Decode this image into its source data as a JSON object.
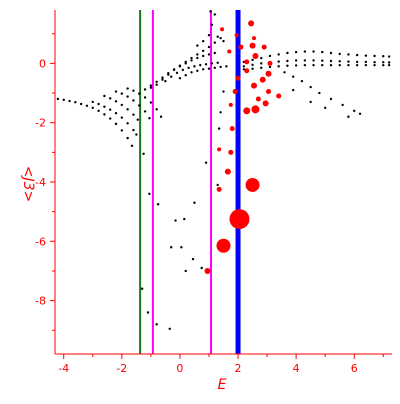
{
  "chart_data": {
    "type": "scatter",
    "title": "",
    "xlabel": "E",
    "ylabel": "<J3>",
    "xlim": [
      -4.3,
      7.3
    ],
    "ylim": [
      -9.8,
      1.8
    ],
    "xticks": [
      -4,
      -2,
      0,
      2,
      4,
      6
    ],
    "yticks": [
      0,
      -2,
      -4,
      -6,
      -8
    ],
    "xtick_labels": [
      "-4",
      "-2",
      "0",
      "2",
      "4",
      "6"
    ],
    "ytick_labels": [
      "0",
      "-2",
      "-4",
      "-6",
      "-8"
    ],
    "grid": false,
    "legend": "none",
    "vertical_lines": [
      {
        "x": -1.37,
        "color": "#1a7a1a",
        "style": "thin"
      },
      {
        "x": -0.93,
        "color": "#ff00ff",
        "style": "thin"
      },
      {
        "x": 1.07,
        "color": "#ff00ff",
        "style": "thin"
      },
      {
        "x": 2.0,
        "color": "#0000ff",
        "style": "thick"
      }
    ],
    "series": [
      {
        "color": "#000000",
        "marker": "dot",
        "points": [
          [
            -4.2,
            -1.2
          ],
          [
            -4.0,
            -1.23
          ],
          [
            -3.8,
            -1.27
          ],
          [
            -3.6,
            -1.31
          ],
          [
            -3.4,
            -1.37
          ],
          [
            -3.2,
            -1.43
          ],
          [
            -3.0,
            -1.5
          ],
          [
            -2.8,
            -1.6
          ],
          [
            -2.6,
            -1.72
          ],
          [
            -2.4,
            -1.86
          ],
          [
            -2.2,
            -2.04
          ],
          [
            -2.0,
            -2.26
          ],
          [
            -1.8,
            -2.52
          ],
          [
            -1.65,
            -2.78
          ],
          [
            -3.0,
            -1.3
          ],
          [
            -2.8,
            -1.37
          ],
          [
            -2.6,
            -1.46
          ],
          [
            -2.4,
            -1.56
          ],
          [
            -2.2,
            -1.68
          ],
          [
            -2.0,
            -1.83
          ],
          [
            -1.8,
            -2.02
          ],
          [
            -1.6,
            -2.25
          ],
          [
            -1.5,
            -2.4
          ],
          [
            -2.6,
            -1.1
          ],
          [
            -2.4,
            -1.18
          ],
          [
            -2.2,
            -1.28
          ],
          [
            -2.0,
            -1.4
          ],
          [
            -1.8,
            -1.55
          ],
          [
            -1.6,
            -1.73
          ],
          [
            -1.45,
            -1.9
          ],
          [
            -2.2,
            -0.95
          ],
          [
            -2.0,
            -1.02
          ],
          [
            -1.8,
            -1.12
          ],
          [
            -1.6,
            -1.25
          ],
          [
            -1.4,
            -1.42
          ],
          [
            -1.2,
            -1.62
          ],
          [
            -1.05,
            -1.85
          ],
          [
            -1.8,
            -0.85
          ],
          [
            -1.6,
            -0.92
          ],
          [
            -1.4,
            -1.02
          ],
          [
            -1.2,
            -1.15
          ],
          [
            -1.0,
            -1.32
          ],
          [
            -0.8,
            -1.55
          ],
          [
            -0.65,
            -1.8
          ],
          [
            -1.2,
            -0.88
          ],
          [
            -1.0,
            -0.82
          ],
          [
            -0.8,
            -0.72
          ],
          [
            -0.6,
            -0.55
          ],
          [
            -0.4,
            -0.38
          ],
          [
            -0.2,
            -0.22
          ],
          [
            0.0,
            -0.08
          ],
          [
            0.2,
            0.05
          ],
          [
            0.4,
            0.18
          ],
          [
            0.6,
            0.3
          ],
          [
            0.8,
            0.42
          ],
          [
            1.0,
            0.55
          ],
          [
            1.2,
            0.7
          ],
          [
            1.4,
            0.85
          ],
          [
            -1.0,
            -0.75
          ],
          [
            -0.8,
            -0.62
          ],
          [
            -0.6,
            -0.48
          ],
          [
            -0.4,
            -0.33
          ],
          [
            -0.2,
            -0.2
          ],
          [
            0.0,
            -0.1
          ],
          [
            0.2,
            0.0
          ],
          [
            0.4,
            0.1
          ],
          [
            0.6,
            0.18
          ],
          [
            0.8,
            0.25
          ],
          [
            1.0,
            0.3
          ],
          [
            1.2,
            0.35
          ],
          [
            -0.5,
            -0.6
          ],
          [
            -0.3,
            -0.45
          ],
          [
            -0.1,
            -0.32
          ],
          [
            0.1,
            -0.22
          ],
          [
            0.3,
            -0.15
          ],
          [
            0.5,
            -0.1
          ],
          [
            0.7,
            -0.06
          ],
          [
            0.9,
            -0.03
          ],
          [
            1.1,
            0.0
          ],
          [
            1.3,
            0.02
          ],
          [
            0.0,
            -0.5
          ],
          [
            0.2,
            -0.4
          ],
          [
            0.4,
            -0.3
          ],
          [
            0.6,
            -0.25
          ],
          [
            0.8,
            -0.2
          ],
          [
            1.0,
            -0.18
          ],
          [
            1.2,
            -0.15
          ],
          [
            1.4,
            -0.12
          ],
          [
            1.6,
            -0.1
          ],
          [
            0.6,
            0.6
          ],
          [
            0.8,
            0.75
          ],
          [
            1.0,
            0.95
          ],
          [
            1.1,
            1.3
          ],
          [
            1.3,
            0.9
          ],
          [
            1.5,
            0.75
          ],
          [
            1.2,
            1.65
          ],
          [
            1.05,
            1.75
          ],
          [
            2.2,
            0.05
          ],
          [
            2.5,
            0.12
          ],
          [
            2.8,
            0.18
          ],
          [
            3.1,
            0.25
          ],
          [
            3.4,
            0.3
          ],
          [
            3.7,
            0.35
          ],
          [
            4.0,
            0.38
          ],
          [
            4.3,
            0.4
          ],
          [
            4.6,
            0.4
          ],
          [
            4.9,
            0.38
          ],
          [
            5.2,
            0.35
          ],
          [
            5.5,
            0.32
          ],
          [
            5.8,
            0.3
          ],
          [
            6.1,
            0.28
          ],
          [
            6.4,
            0.26
          ],
          [
            6.7,
            0.25
          ],
          [
            7.0,
            0.24
          ],
          [
            7.2,
            0.23
          ],
          [
            2.2,
            -0.1
          ],
          [
            2.5,
            -0.05
          ],
          [
            2.8,
            0.0
          ],
          [
            3.1,
            0.03
          ],
          [
            3.4,
            0.06
          ],
          [
            3.7,
            0.08
          ],
          [
            4.0,
            0.1
          ],
          [
            4.3,
            0.1
          ],
          [
            4.6,
            0.1
          ],
          [
            4.9,
            0.09
          ],
          [
            5.2,
            0.08
          ],
          [
            5.5,
            0.07
          ],
          [
            5.8,
            0.06
          ],
          [
            6.1,
            0.05
          ],
          [
            6.4,
            0.05
          ],
          [
            6.7,
            0.04
          ],
          [
            7.0,
            0.04
          ],
          [
            7.2,
            0.03
          ],
          [
            2.2,
            -0.2
          ],
          [
            2.5,
            -0.18
          ],
          [
            2.8,
            -0.15
          ],
          [
            3.1,
            -0.12
          ],
          [
            3.4,
            -0.1
          ],
          [
            3.7,
            -0.08
          ],
          [
            4.0,
            -0.07
          ],
          [
            4.3,
            -0.06
          ],
          [
            4.6,
            -0.06
          ],
          [
            4.9,
            -0.06
          ],
          [
            5.2,
            -0.06
          ],
          [
            5.5,
            -0.06
          ],
          [
            5.8,
            -0.06
          ],
          [
            6.1,
            -0.06
          ],
          [
            6.4,
            -0.06
          ],
          [
            6.7,
            -0.06
          ],
          [
            7.0,
            -0.06
          ],
          [
            7.2,
            -0.06
          ],
          [
            3.6,
            -0.3
          ],
          [
            3.9,
            -0.45
          ],
          [
            4.2,
            -0.6
          ],
          [
            4.5,
            -0.8
          ],
          [
            4.8,
            -1.0
          ],
          [
            5.2,
            -1.2
          ],
          [
            5.6,
            -1.4
          ],
          [
            6.0,
            -1.6
          ],
          [
            6.2,
            -1.7
          ],
          [
            3.9,
            -0.9
          ],
          [
            4.5,
            -1.3
          ],
          [
            5.0,
            -1.5
          ],
          [
            5.8,
            -1.8
          ],
          [
            -1.25,
            -3.05
          ],
          [
            -1.05,
            -4.4
          ],
          [
            -0.75,
            -4.75
          ],
          [
            -0.15,
            -5.3
          ],
          [
            0.15,
            -5.25
          ],
          [
            -0.3,
            -6.2
          ],
          [
            0.05,
            -6.2
          ],
          [
            0.45,
            -6.6
          ],
          [
            0.2,
            -7.0
          ],
          [
            0.75,
            -6.9
          ],
          [
            -1.3,
            -7.6
          ],
          [
            -1.1,
            -8.4
          ],
          [
            -0.8,
            -8.8
          ],
          [
            -0.35,
            -8.95
          ],
          [
            0.5,
            -4.7
          ],
          [
            1.3,
            -4.1
          ],
          [
            0.9,
            -3.35
          ],
          [
            1.35,
            -2.2
          ],
          [
            1.4,
            -1.65
          ],
          [
            1.5,
            -0.95
          ]
        ]
      },
      {
        "color": "#ff0000",
        "marker": "circle",
        "points": [
          [
            2.05,
            -5.25,
            10
          ],
          [
            1.5,
            -6.15,
            7
          ],
          [
            2.5,
            -4.1,
            7
          ],
          [
            0.95,
            -7.0,
            3
          ],
          [
            1.35,
            -4.25,
            2.5
          ],
          [
            1.65,
            -3.65,
            3
          ],
          [
            1.75,
            -3.0,
            2.5
          ],
          [
            1.35,
            -2.9,
            2
          ],
          [
            1.8,
            -2.2,
            2.5
          ],
          [
            2.3,
            -1.6,
            3.5
          ],
          [
            2.6,
            -1.55,
            4
          ],
          [
            2.95,
            -1.35,
            3
          ],
          [
            2.7,
            -1.2,
            2.5
          ],
          [
            3.05,
            -0.95,
            2.5
          ],
          [
            3.4,
            -1.1,
            2.5
          ],
          [
            2.55,
            -0.75,
            3
          ],
          [
            2.85,
            -0.55,
            3
          ],
          [
            3.05,
            -0.35,
            3
          ],
          [
            2.3,
            -0.25,
            2.5
          ],
          [
            2.0,
            -0.5,
            2.5
          ],
          [
            1.9,
            -0.95,
            2.5
          ],
          [
            2.3,
            0.05,
            2.5
          ],
          [
            2.6,
            0.25,
            3
          ],
          [
            2.9,
            0.55,
            2.5
          ],
          [
            2.5,
            0.6,
            3
          ],
          [
            2.1,
            0.55,
            2.5
          ],
          [
            1.7,
            0.4,
            2
          ],
          [
            1.95,
            0.95,
            2
          ],
          [
            1.45,
            1.15,
            2
          ],
          [
            2.45,
            1.35,
            3
          ],
          [
            2.55,
            0.85,
            2
          ],
          [
            3.1,
            0.0,
            2.5
          ],
          [
            1.75,
            -1.4,
            2
          ]
        ]
      }
    ]
  }
}
